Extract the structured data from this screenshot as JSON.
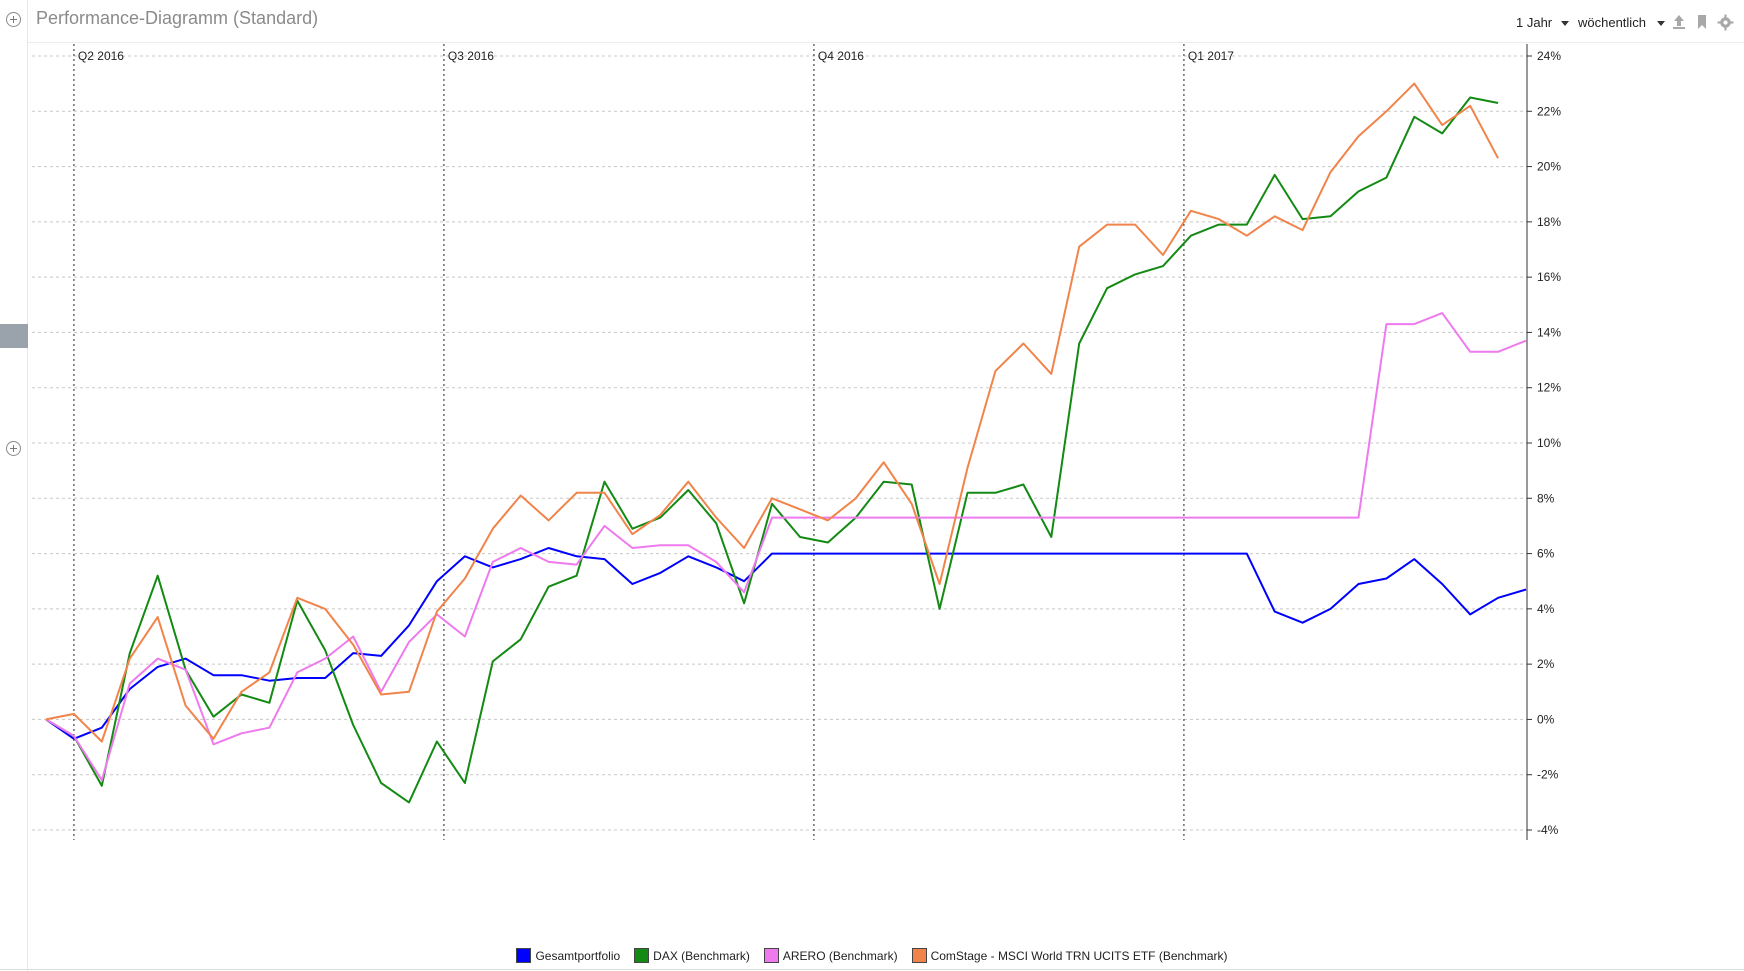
{
  "window": {
    "title": "Performance-Diagramm (Standard)"
  },
  "toolbar": {
    "range_label": "1 Jahr",
    "interval_label": "wöchentlich",
    "icons": [
      "upload-icon",
      "bookmark-icon",
      "gear-icon"
    ]
  },
  "chart_data": {
    "type": "line",
    "title": "Performance-Diagramm (Standard)",
    "xlabel": "",
    "ylabel": "",
    "ylim": [
      -4,
      24
    ],
    "yticks": [
      -4,
      -2,
      0,
      2,
      4,
      6,
      8,
      10,
      12,
      14,
      16,
      18,
      20,
      22,
      24
    ],
    "ytick_labels": [
      "-4%",
      "-2%",
      "0%",
      "2%",
      "4%",
      "6%",
      "8%",
      "10%",
      "12%",
      "14%",
      "16%",
      "18%",
      "20%",
      "22%",
      "24%"
    ],
    "y_axis_position": "right",
    "grid": true,
    "legend_position": "bottom-center",
    "quarter_markers": [
      {
        "label": "Q2 2016",
        "index": 1
      },
      {
        "label": "Q3 2016",
        "index": 14.25
      },
      {
        "label": "Q4 2016",
        "index": 27.5
      },
      {
        "label": "Q1 2017",
        "index": 40.75
      }
    ],
    "x_count": 54,
    "series": [
      {
        "name": "Gesamtportfolio",
        "color": "#0000ff",
        "values": [
          0.0,
          -0.7,
          -0.3,
          1.1,
          1.9,
          2.2,
          1.6,
          1.6,
          1.4,
          1.5,
          1.5,
          2.4,
          2.3,
          3.4,
          5.0,
          5.9,
          5.5,
          5.8,
          6.2,
          5.9,
          5.8,
          4.9,
          5.3,
          5.9,
          5.5,
          5.0,
          6.0,
          6.0,
          6.0,
          6.0,
          6.0,
          6.0,
          6.0,
          6.0,
          6.0,
          6.0,
          6.0,
          6.0,
          6.0,
          6.0,
          6.0,
          6.0,
          6.0,
          6.0,
          3.9,
          3.5,
          4.0,
          4.9,
          5.1,
          5.8,
          4.9,
          3.8,
          4.4,
          4.7
        ]
      },
      {
        "name": "DAX (Benchmark)",
        "color": "#138a13",
        "values": [
          0.0,
          -0.6,
          -2.4,
          2.4,
          5.2,
          1.8,
          0.1,
          0.9,
          0.6,
          4.3,
          2.5,
          -0.2,
          -2.3,
          -3.0,
          -0.8,
          -2.3,
          2.1,
          2.9,
          4.8,
          5.2,
          8.6,
          6.9,
          7.3,
          8.3,
          7.1,
          4.2,
          7.8,
          6.6,
          6.4,
          7.3,
          8.6,
          8.5,
          4.0,
          8.2,
          8.2,
          8.5,
          6.6,
          13.6,
          15.6,
          16.1,
          16.4,
          17.5,
          17.9,
          17.9,
          19.7,
          18.1,
          18.2,
          19.1,
          19.6,
          21.8,
          21.2,
          22.5,
          22.3,
          null
        ]
      },
      {
        "name": "ARERO (Benchmark)",
        "color": "#ee7aee",
        "values": [
          0.0,
          -0.6,
          -2.2,
          1.3,
          2.2,
          1.8,
          -0.9,
          -0.5,
          -0.3,
          1.7,
          2.2,
          3.0,
          1.0,
          2.8,
          3.8,
          3.0,
          5.7,
          6.2,
          5.7,
          5.6,
          7.0,
          6.2,
          6.3,
          6.3,
          5.7,
          4.6,
          7.3,
          7.3,
          7.3,
          7.3,
          7.3,
          7.3,
          7.3,
          7.3,
          7.3,
          7.3,
          7.3,
          7.3,
          7.3,
          7.3,
          7.3,
          7.3,
          7.3,
          7.3,
          7.3,
          7.3,
          7.3,
          7.3,
          14.3,
          14.3,
          14.7,
          13.3,
          13.3,
          13.7
        ]
      },
      {
        "name": "ComStage - MSCI World TRN UCITS ETF (Benchmark)",
        "color": "#f0844a",
        "values": [
          0.0,
          0.2,
          -0.8,
          2.2,
          3.7,
          0.5,
          -0.7,
          1.0,
          1.7,
          4.4,
          4.0,
          2.7,
          0.9,
          1.0,
          3.9,
          5.1,
          6.9,
          8.1,
          7.2,
          8.2,
          8.2,
          6.7,
          7.4,
          8.6,
          7.3,
          6.2,
          8.0,
          7.6,
          7.2,
          8.0,
          9.3,
          7.8,
          4.9,
          9.1,
          12.6,
          13.6,
          12.5,
          17.1,
          17.9,
          17.9,
          16.8,
          18.4,
          18.1,
          17.5,
          18.2,
          17.7,
          19.8,
          21.1,
          22.0,
          23.0,
          21.5,
          22.2,
          20.3,
          null
        ]
      }
    ]
  },
  "legend": {
    "items": [
      {
        "label": "Gesamtportfolio",
        "color": "#0000ff"
      },
      {
        "label": "DAX (Benchmark)",
        "color": "#138a13"
      },
      {
        "label": "ARERO (Benchmark)",
        "color": "#ee7aee"
      },
      {
        "label": "ComStage - MSCI World TRN UCITS ETF (Benchmark)",
        "color": "#f0844a"
      }
    ]
  }
}
